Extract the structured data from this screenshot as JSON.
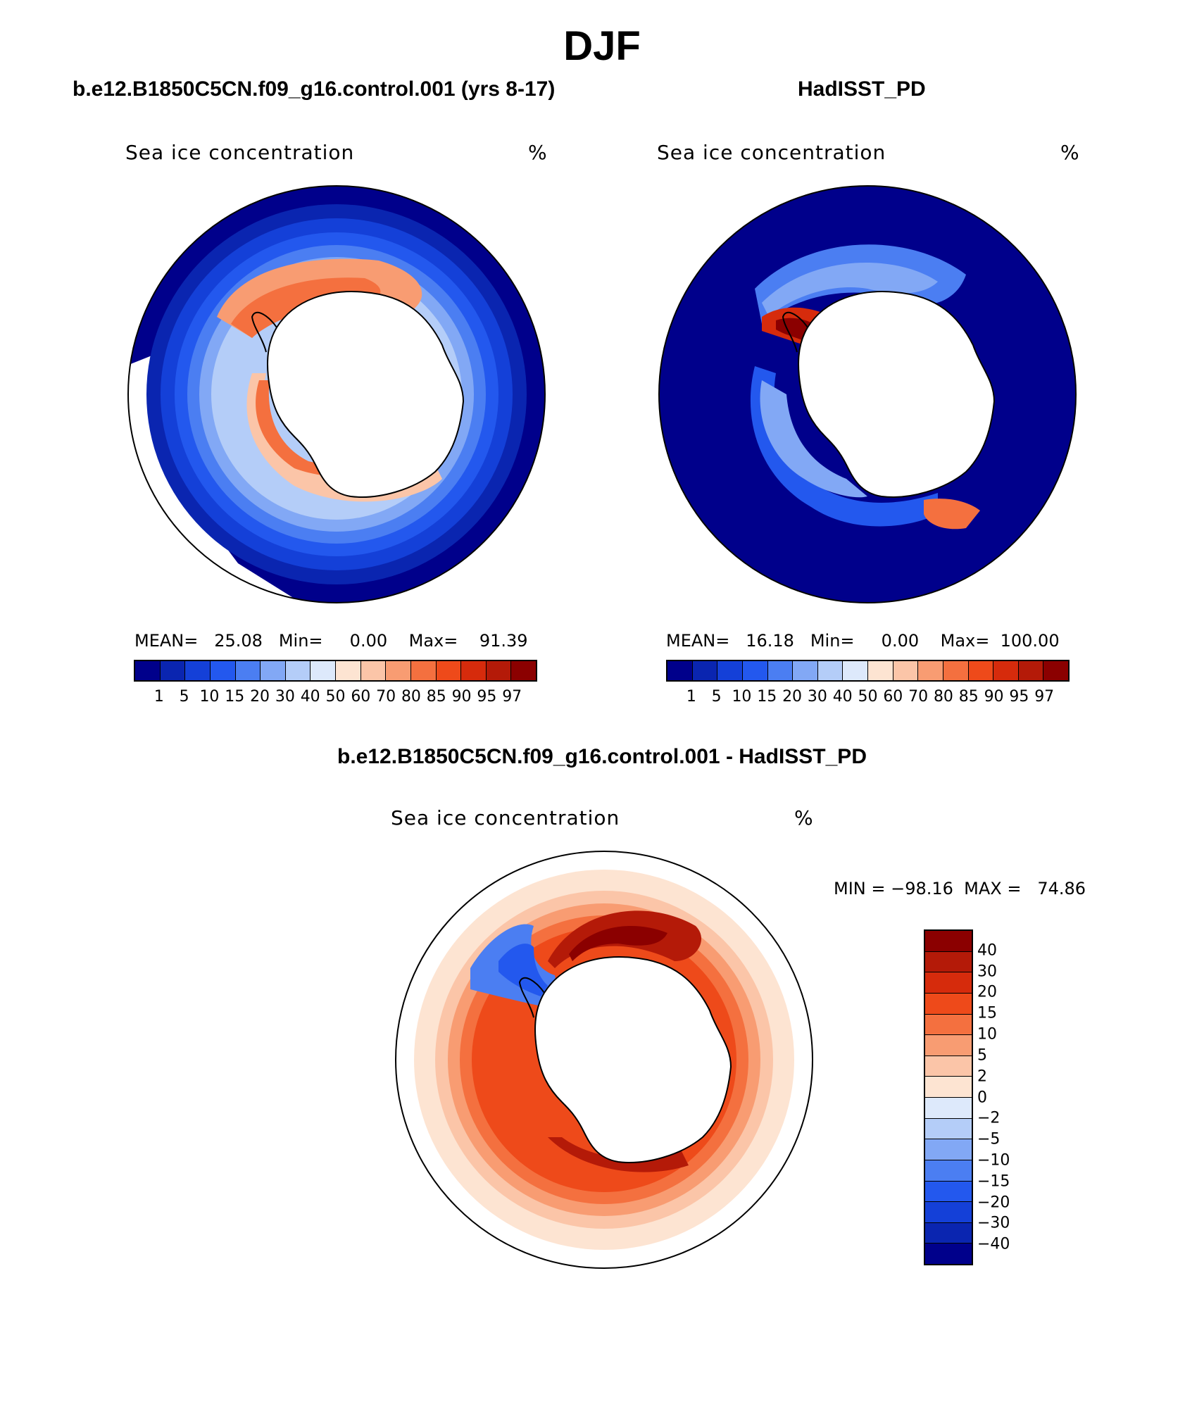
{
  "figure": {
    "title": "DJF"
  },
  "panels": [
    {
      "title": "b.e12.B1850C5CN.f09_g16.control.001 (yrs 8-17)",
      "variable": "Sea ice concentration",
      "units": "%",
      "stats": "MEAN=   25.08   Min=     0.00    Max=    91.39"
    },
    {
      "title": "HadISST_PD",
      "variable": "Sea ice concentration",
      "units": "%",
      "stats": "MEAN=   16.18   Min=     0.00    Max=  100.00"
    },
    {
      "title": "b.e12.B1850C5CN.f09_g16.control.001 - HadISST_PD",
      "variable": "Sea ice concentration",
      "units": "%",
      "stats": "MIN = −98.16  MAX =   74.86"
    }
  ],
  "colorbar_main": {
    "ticks": [
      "1",
      "5",
      "10",
      "15",
      "20",
      "30",
      "40",
      "50",
      "60",
      "70",
      "80",
      "85",
      "90",
      "95",
      "97"
    ],
    "colors": [
      "#00008b",
      "#0a25b0",
      "#1440d8",
      "#2358ee",
      "#4b7ef2",
      "#82a8f5",
      "#b4cdf8",
      "#dde9fb",
      "#fde4d2",
      "#fbc5a8",
      "#f89c72",
      "#f4703f",
      "#ee4a1a",
      "#d62b0c",
      "#b41a08",
      "#8b0000"
    ]
  },
  "colorbar_diff": {
    "ticks": [
      "40",
      "30",
      "20",
      "15",
      "10",
      "5",
      "2",
      "0",
      "−2",
      "−5",
      "−10",
      "−15",
      "−20",
      "−30",
      "−40"
    ],
    "colors": [
      "#8b0000",
      "#b41a08",
      "#d62b0c",
      "#ee4a1a",
      "#f4703f",
      "#f89c72",
      "#fbc5a8",
      "#fde4d2",
      "#dde9fb",
      "#b4cdf8",
      "#82a8f5",
      "#4b7ef2",
      "#2358ee",
      "#1440d8",
      "#0a25b0",
      "#00008b"
    ]
  },
  "colors": {
    "background": "#ffffff",
    "land": "#ffffff",
    "coastline": "#000000"
  }
}
